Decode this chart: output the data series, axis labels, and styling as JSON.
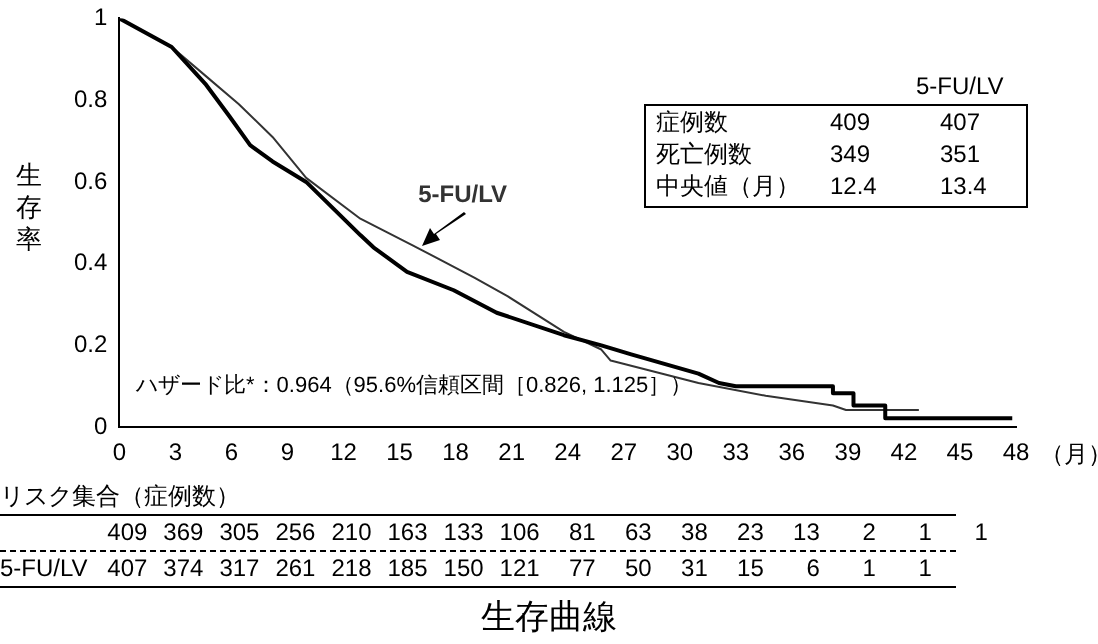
{
  "chart_data": {
    "type": "line",
    "title": "生存曲線",
    "xlabel": "（月）",
    "ylabel": "生存率",
    "xlim": [
      0,
      48
    ],
    "xticks": [
      0,
      3,
      6,
      9,
      12,
      15,
      18,
      21,
      24,
      27,
      30,
      33,
      36,
      39,
      42,
      45,
      48
    ],
    "ylim": [
      0,
      1
    ],
    "yticks": [
      0,
      0.2,
      0.4,
      0.6,
      0.8,
      1
    ],
    "series": [
      {
        "color": "#000000",
        "x": [
          0,
          2.8,
          4.6,
          5.9,
          7.0,
          8.2,
          10.0,
          12.9,
          13.6,
          15.4,
          17.9,
          20.2,
          23.8,
          25.8,
          27.4,
          31.0,
          32.1,
          33.0,
          38.2,
          38.2,
          39.3,
          39.3,
          41.0,
          41.0,
          47.8
        ],
        "values": [
          1,
          0.93,
          0.84,
          0.76,
          0.69,
          0.65,
          0.6,
          0.47,
          0.44,
          0.38,
          0.335,
          0.28,
          0.225,
          0.2,
          0.178,
          0.131,
          0.108,
          0.1,
          0.1,
          0.083,
          0.083,
          0.053,
          0.053,
          0.022,
          0.022
        ]
      },
      {
        "name": "5-FU/LV",
        "color": "#333333",
        "x": [
          0,
          2.8,
          4.6,
          6.4,
          8.2,
          10.0,
          12.9,
          15.7,
          19.0,
          20.8,
          23.8,
          25.8,
          26.3,
          31.0,
          34.6,
          38.2,
          38.9,
          42.8
        ],
        "values": [
          1,
          0.93,
          0.86,
          0.79,
          0.71,
          0.61,
          0.51,
          0.445,
          0.366,
          0.32,
          0.233,
          0.19,
          0.163,
          0.108,
          0.077,
          0.053,
          0.042,
          0.042
        ]
      }
    ],
    "annotations": [
      "5-FU/LV",
      "症例数 409 407",
      "死亡例数 349 351",
      "中央値（月） 12.4 13.4",
      "ハザード比*：0.964（95.6%信頼区間［0.826, 1.125］）",
      "リスク集合（症例数）",
      "409 369 305 256 210 163 133 106 81 63 38 23 13 2 1 1",
      "5-FU/LV 407 374 317 261 218 185 150 121 77 50 31 15 6 1 1"
    ],
    "legend": false,
    "grid": false
  }
}
